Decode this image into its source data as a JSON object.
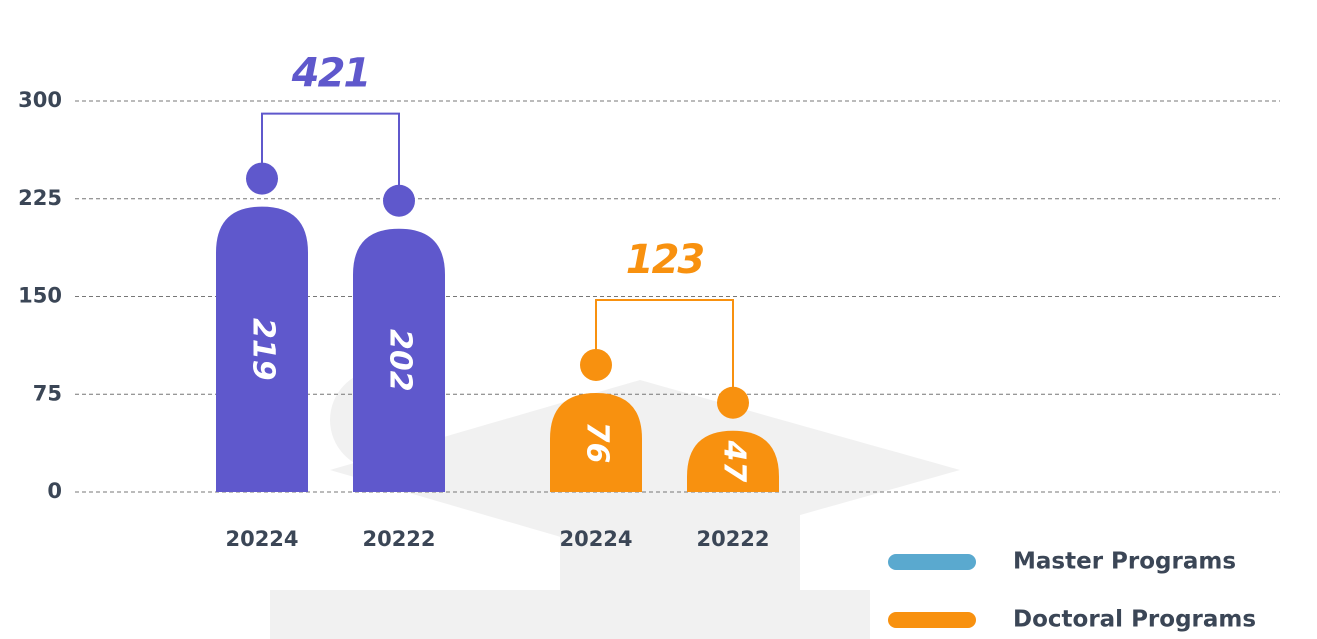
{
  "chart_data": {
    "type": "bar",
    "categories": [
      "20224",
      "20222"
    ],
    "series": [
      {
        "name": "Master Programs",
        "color": "#5aa9cf",
        "bar_color": "#5f58cc",
        "values": [
          219,
          202
        ],
        "total": 421
      },
      {
        "name": "Doctoral Programs",
        "color": "#f8910f",
        "bar_color": "#f8910f",
        "values": [
          76,
          47
        ],
        "total": 123
      }
    ],
    "ylim": [
      0,
      300
    ],
    "yticks": [
      0,
      75,
      150,
      225,
      300
    ],
    "grid": true
  }
}
